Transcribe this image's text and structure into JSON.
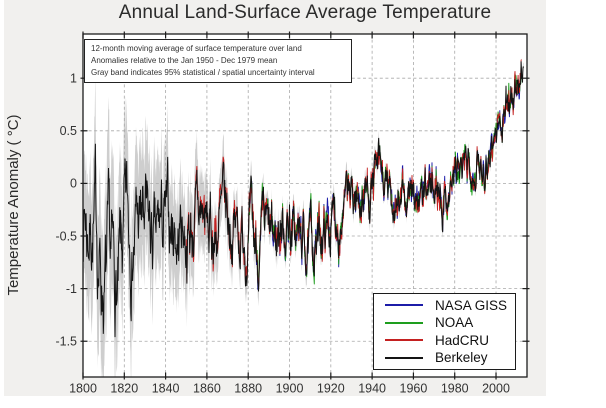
{
  "figure": {
    "title": "Annual Land-Surface Average Temperature",
    "background": "#f1f0ee",
    "plot_background": "#ffffff"
  },
  "annotation_box": {
    "lines": [
      "12-month moving average of surface temperature over land",
      "Anomalies relative to the Jan 1950 - Dec 1979 mean",
      "Gray band indicates 95% statistical / spatial uncertainty interval"
    ]
  },
  "chart_data": {
    "type": "line",
    "title": "Annual Land-Surface Average Temperature",
    "xlabel": "",
    "ylabel": "Temperature Anomaly ( °C)",
    "xlim": [
      1800,
      2015
    ],
    "ylim": [
      -1.84,
      1.42
    ],
    "x_ticks": [
      1800,
      1820,
      1840,
      1860,
      1880,
      1900,
      1920,
      1940,
      1960,
      1980,
      2000
    ],
    "y_ticks": [
      1,
      0.5,
      0,
      -0.5,
      -1,
      -1.5
    ],
    "y_tick_labels": [
      "1",
      "0.5",
      "0",
      "-0.5",
      "-1",
      "-1.5"
    ],
    "grid": "dashed",
    "grid_color": "#a9a9a9",
    "legend_position": "lower right",
    "series": [
      {
        "name": "NASA GISS",
        "color": "#1c1ca8",
        "start_year": 1880,
        "end_year": 2012
      },
      {
        "name": "NOAA",
        "color": "#1e9e1e",
        "start_year": 1880,
        "end_year": 2012
      },
      {
        "name": "HadCRU",
        "color": "#c42020",
        "start_year": 1850,
        "end_year": 2012
      },
      {
        "name": "Berkeley",
        "color": "#141414",
        "start_year": 1800,
        "end_year": 2013
      }
    ],
    "trend": {
      "comment": "smoothed land-surface anomaly (deg C) read from chart; all four series track this curve",
      "years": [
        1800,
        1803,
        1806,
        1808,
        1810,
        1812,
        1815,
        1817,
        1819,
        1821,
        1824,
        1828,
        1831,
        1835,
        1838,
        1841,
        1845,
        1850,
        1855,
        1858,
        1862,
        1866,
        1870,
        1875,
        1880,
        1884,
        1888,
        1892,
        1896,
        1900,
        1904,
        1908,
        1912,
        1916,
        1920,
        1924,
        1928,
        1932,
        1936,
        1940,
        1944,
        1948,
        1952,
        1956,
        1960,
        1964,
        1968,
        1972,
        1976,
        1980,
        1984,
        1988,
        1992,
        1996,
        2000,
        2004,
        2007,
        2010,
        2012
      ],
      "anomaly": [
        -0.2,
        -0.35,
        -0.3,
        -0.7,
        -0.95,
        -1.0,
        -1.05,
        -1.1,
        -0.8,
        -0.5,
        -0.4,
        -0.35,
        -0.55,
        -0.7,
        -0.45,
        -0.5,
        -0.4,
        -0.4,
        -0.35,
        -0.3,
        -0.55,
        -0.35,
        -0.4,
        -0.4,
        -0.45,
        -0.65,
        -0.55,
        -0.6,
        -0.4,
        -0.35,
        -0.55,
        -0.6,
        -0.6,
        -0.45,
        -0.35,
        -0.3,
        -0.2,
        -0.15,
        -0.1,
        0.0,
        0.05,
        -0.15,
        -0.1,
        -0.2,
        -0.05,
        -0.2,
        -0.1,
        -0.05,
        -0.1,
        0.1,
        0.05,
        0.25,
        0.15,
        0.3,
        0.5,
        0.7,
        0.9,
        0.9,
        0.95
      ]
    },
    "uncertainty_band": {
      "color": "#c6c6c6",
      "years": [
        1800,
        1810,
        1820,
        1830,
        1840,
        1850,
        1860,
        1870,
        1880,
        1890,
        1900,
        1920,
        1940,
        1960,
        1980,
        2013
      ],
      "half_width": [
        0.55,
        0.7,
        0.6,
        0.55,
        0.5,
        0.42,
        0.33,
        0.25,
        0.15,
        0.13,
        0.12,
        0.1,
        0.08,
        0.06,
        0.05,
        0.04
      ]
    },
    "noise_std": {
      "comment": "observed amplitude (std dev) of 12-month moving-average wiggle about trend",
      "years": [
        1800,
        1815,
        1825,
        1850,
        1870,
        1890,
        1920,
        1950,
        1980,
        2013
      ],
      "std": [
        0.33,
        0.38,
        0.3,
        0.25,
        0.22,
        0.18,
        0.16,
        0.13,
        0.12,
        0.12
      ]
    }
  }
}
